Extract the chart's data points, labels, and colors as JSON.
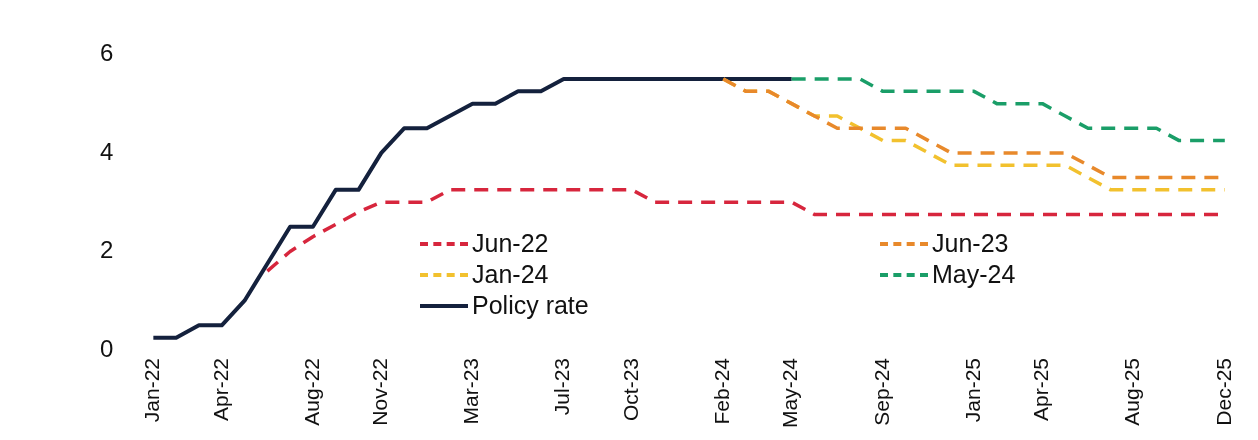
{
  "chart_data": {
    "type": "line",
    "categories": [
      "Jan-22",
      null,
      null,
      "Apr-22",
      null,
      null,
      null,
      "Aug-22",
      null,
      null,
      "Nov-22",
      null,
      null,
      null,
      "Mar-23",
      null,
      null,
      null,
      "Jul-23",
      null,
      null,
      "Oct-23",
      null,
      null,
      null,
      "Feb-24",
      null,
      null,
      "May-24",
      null,
      null,
      null,
      "Sep-24",
      null,
      null,
      null,
      "Jan-25",
      null,
      null,
      "Apr-25",
      null,
      null,
      null,
      "Aug-25",
      null,
      null,
      null,
      "Dec-25"
    ],
    "series": [
      {
        "name": "Jun-22",
        "color": "#d7263d",
        "line_style": "dashed",
        "values": [
          null,
          null,
          null,
          null,
          null,
          1.6,
          2.0,
          2.3,
          2.55,
          2.8,
          3.0,
          3.0,
          3.0,
          3.25,
          3.25,
          3.25,
          3.25,
          3.25,
          3.25,
          3.25,
          3.25,
          3.25,
          3.0,
          3.0,
          3.0,
          3.0,
          3.0,
          3.0,
          3.0,
          2.75,
          2.75,
          2.75,
          2.75,
          2.75,
          2.75,
          2.75,
          2.75,
          2.75,
          2.75,
          2.75,
          2.75,
          2.75,
          2.75,
          2.75,
          2.75,
          2.75,
          2.75,
          2.75
        ]
      },
      {
        "name": "Jun-23",
        "color": "#e8892b",
        "line_style": "dashed",
        "values": [
          null,
          null,
          null,
          null,
          null,
          null,
          null,
          null,
          null,
          null,
          null,
          null,
          null,
          null,
          null,
          null,
          null,
          null,
          null,
          null,
          null,
          null,
          null,
          null,
          null,
          5.5,
          5.25,
          5.25,
          5.0,
          4.75,
          4.5,
          4.5,
          4.5,
          4.5,
          4.25,
          4.0,
          4.0,
          4.0,
          4.0,
          4.0,
          4.0,
          3.75,
          3.5,
          3.5,
          3.5,
          3.5,
          3.5,
          3.5
        ]
      },
      {
        "name": "Jan-24",
        "color": "#f2c12e",
        "line_style": "dashed",
        "values": [
          null,
          null,
          null,
          null,
          null,
          null,
          null,
          null,
          null,
          null,
          null,
          null,
          null,
          null,
          null,
          null,
          null,
          null,
          null,
          null,
          null,
          null,
          null,
          null,
          null,
          5.5,
          5.25,
          5.25,
          5.0,
          4.75,
          4.75,
          4.5,
          4.25,
          4.25,
          4.0,
          3.75,
          3.75,
          3.75,
          3.75,
          3.75,
          3.75,
          3.5,
          3.25,
          3.25,
          3.25,
          3.25,
          3.25,
          3.25
        ]
      },
      {
        "name": "May-24",
        "color": "#1a9e68",
        "line_style": "dashed",
        "values": [
          null,
          null,
          null,
          null,
          null,
          null,
          null,
          null,
          null,
          null,
          null,
          null,
          null,
          null,
          null,
          null,
          null,
          null,
          null,
          null,
          null,
          null,
          null,
          null,
          null,
          null,
          null,
          null,
          5.5,
          5.5,
          5.5,
          5.5,
          5.25,
          5.25,
          5.25,
          5.25,
          5.25,
          5.0,
          5.0,
          5.0,
          4.75,
          4.5,
          4.5,
          4.5,
          4.5,
          4.25,
          4.25,
          4.25
        ]
      },
      {
        "name": "Policy rate",
        "color": "#14213d",
        "line_style": "solid",
        "values": [
          0.25,
          0.25,
          0.5,
          0.5,
          1.0,
          1.75,
          2.5,
          2.5,
          3.25,
          3.25,
          4.0,
          4.5,
          4.5,
          4.75,
          5.0,
          5.0,
          5.25,
          5.25,
          5.5,
          5.5,
          5.5,
          5.5,
          5.5,
          5.5,
          5.5,
          5.5,
          5.5,
          5.5,
          5.5,
          null,
          null,
          null,
          null,
          null,
          null,
          null,
          null,
          null,
          null,
          null,
          null,
          null,
          null,
          null,
          null,
          null,
          null,
          null
        ]
      }
    ],
    "ylim": [
      0,
      6
    ],
    "yticks": [
      0,
      2,
      4,
      6
    ],
    "grid": false,
    "legend": "bottom",
    "marker": "none"
  }
}
